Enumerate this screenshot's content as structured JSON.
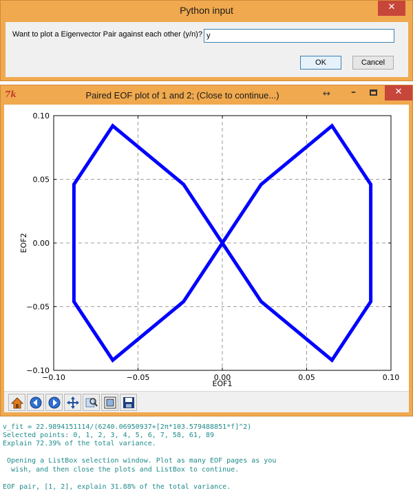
{
  "dialog": {
    "title": "Python input",
    "close_glyph": "✕",
    "prompt": "Want to plot a Eigenvector Pair against each other (y/n)?",
    "input_value": "y",
    "ok_label": "OK",
    "cancel_label": "Cancel"
  },
  "plot_window": {
    "icon_text": "7k",
    "title": "Paired EOF plot of 1 and 2; (Close to continue...)",
    "resize_glyph": "↔",
    "minimize_glyph": "–",
    "close_glyph": "✕",
    "toolbar_icons": [
      "home-icon",
      "back-icon",
      "forward-icon",
      "pan-icon",
      "zoom-icon",
      "subplots-icon",
      "save-icon"
    ]
  },
  "chart_data": {
    "type": "line",
    "title": "",
    "xlabel": "EOF1",
    "ylabel": "EOF2",
    "xlim": [
      -0.1,
      0.1
    ],
    "ylim": [
      -0.1,
      0.1
    ],
    "xticks": [
      "−0.10",
      "−0.05",
      "0.00",
      "0.05",
      "0.10"
    ],
    "yticks": [
      "−0.10",
      "−0.05",
      "0.00",
      "0.05",
      "0.10"
    ],
    "grid": true,
    "line_color": "#0000ff",
    "series": [
      {
        "x": [
          0.0,
          0.023,
          0.065,
          0.088,
          0.088,
          0.065,
          0.023,
          0.0,
          -0.023,
          -0.065,
          -0.088,
          -0.088,
          -0.065,
          -0.023,
          0.0
        ],
        "y": [
          0.0,
          0.046,
          0.092,
          0.046,
          -0.046,
          -0.092,
          -0.046,
          0.0,
          0.046,
          0.092,
          0.046,
          -0.046,
          -0.092,
          -0.046,
          0.0
        ]
      }
    ]
  },
  "console": {
    "lines": [
      "v_fit = 22.9894151114/(6240.06950937+[2π*103.579488851*f]^2)",
      "Selected points: 0, 1, 2, 3, 4, 5, 6, 7, 58, 61, 89",
      "Explain 72.39% of the total variance.",
      "",
      " Opening a ListBox selection window. Plot as many EOF pages as you",
      "  wish, and then close the plots and ListBox to continue.",
      "",
      "EOF pair, [1, 2], explain 31.88% of the total variance."
    ]
  }
}
